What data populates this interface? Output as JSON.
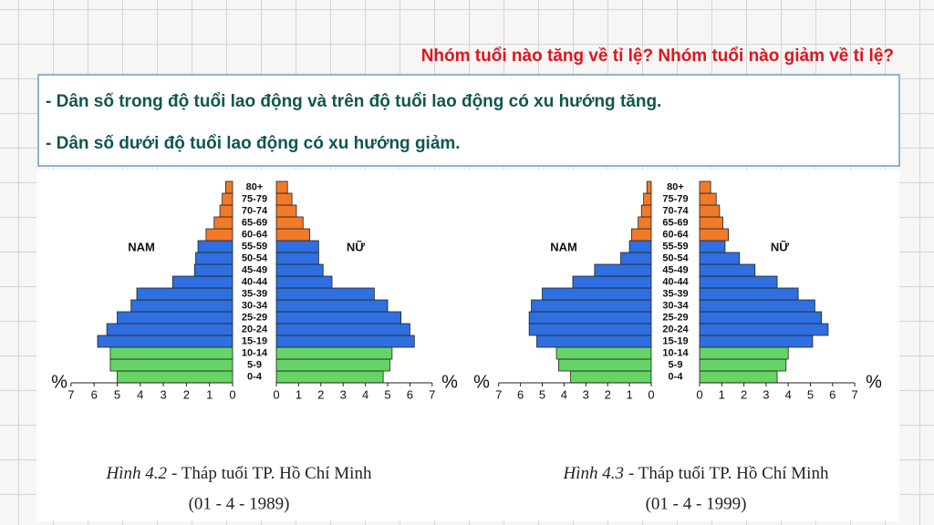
{
  "header": {
    "question": "Nhóm tuổi nào tăng về tỉ lệ? Nhóm tuổi nào giảm về tỉ lệ?",
    "answers": [
      "- Dân số trong độ tuổi lao động và trên độ tuổi lao động có xu hướng tăng.",
      "- Dân số dưới độ tuổi lao động có xu hướng giảm."
    ]
  },
  "chart_data": [
    {
      "type": "pyramid",
      "figure_label": "Hình 4.2",
      "title": "- Tháp tuổi TP. Hồ Chí Minh",
      "subtitle": "(01 - 4 - 1989)",
      "axis_label": "%",
      "categories": [
        "0-4",
        "5-9",
        "10-14",
        "15-19",
        "20-24",
        "25-29",
        "30-34",
        "35-39",
        "40-44",
        "45-49",
        "50-54",
        "55-59",
        "60-64",
        "65-69",
        "70-74",
        "75-79",
        "80+"
      ],
      "bar_colors": [
        "#66d466",
        "#66d466",
        "#66d466",
        "#2f6fe0",
        "#2f6fe0",
        "#2f6fe0",
        "#2f6fe0",
        "#2f6fe0",
        "#2f6fe0",
        "#2f6fe0",
        "#2f6fe0",
        "#2f6fe0",
        "#f07a2a",
        "#f07a2a",
        "#f07a2a",
        "#f07a2a",
        "#f07a2a"
      ],
      "series": [
        {
          "name": "NAM",
          "values": [
            5.0,
            5.3,
            5.3,
            5.85,
            5.45,
            5.0,
            4.4,
            4.15,
            2.6,
            1.65,
            1.6,
            1.5,
            1.15,
            0.8,
            0.55,
            0.45,
            0.3
          ]
        },
        {
          "name": "NỮ",
          "values": [
            4.8,
            5.1,
            5.2,
            6.2,
            6.0,
            5.6,
            5.0,
            4.4,
            2.5,
            2.1,
            1.9,
            1.9,
            1.5,
            1.2,
            0.9,
            0.7,
            0.5
          ]
        }
      ],
      "xlim": [
        0,
        7
      ],
      "xticks": [
        0,
        1,
        2,
        3,
        4,
        5,
        6,
        7
      ]
    },
    {
      "type": "pyramid",
      "figure_label": "Hình 4.3",
      "title": "- Tháp tuổi TP. Hồ Chí Minh",
      "subtitle": "(01 - 4 - 1999)",
      "axis_label": "%",
      "categories": [
        "0-4",
        "5-9",
        "10-14",
        "15-19",
        "20-24",
        "25-29",
        "30-34",
        "35-39",
        "40-44",
        "45-49",
        "50-54",
        "55-59",
        "60-64",
        "65-69",
        "70-74",
        "75-79",
        "80+"
      ],
      "bar_colors": [
        "#66d466",
        "#66d466",
        "#66d466",
        "#2f6fe0",
        "#2f6fe0",
        "#2f6fe0",
        "#2f6fe0",
        "#2f6fe0",
        "#2f6fe0",
        "#2f6fe0",
        "#2f6fe0",
        "#2f6fe0",
        "#f07a2a",
        "#f07a2a",
        "#f07a2a",
        "#f07a2a",
        "#f07a2a"
      ],
      "series": [
        {
          "name": "NAM",
          "values": [
            3.7,
            4.25,
            4.35,
            5.25,
            5.6,
            5.6,
            5.5,
            5.0,
            3.6,
            2.6,
            1.4,
            1.0,
            0.9,
            0.6,
            0.45,
            0.35,
            0.2
          ]
        },
        {
          "name": "NỮ",
          "values": [
            3.5,
            3.9,
            4.0,
            5.1,
            5.8,
            5.5,
            5.2,
            4.45,
            3.5,
            2.5,
            1.8,
            1.15,
            1.3,
            1.05,
            0.9,
            0.75,
            0.5
          ]
        }
      ],
      "xlim": [
        0,
        7
      ],
      "xticks": [
        0,
        1,
        2,
        3,
        4,
        5,
        6,
        7
      ]
    }
  ]
}
